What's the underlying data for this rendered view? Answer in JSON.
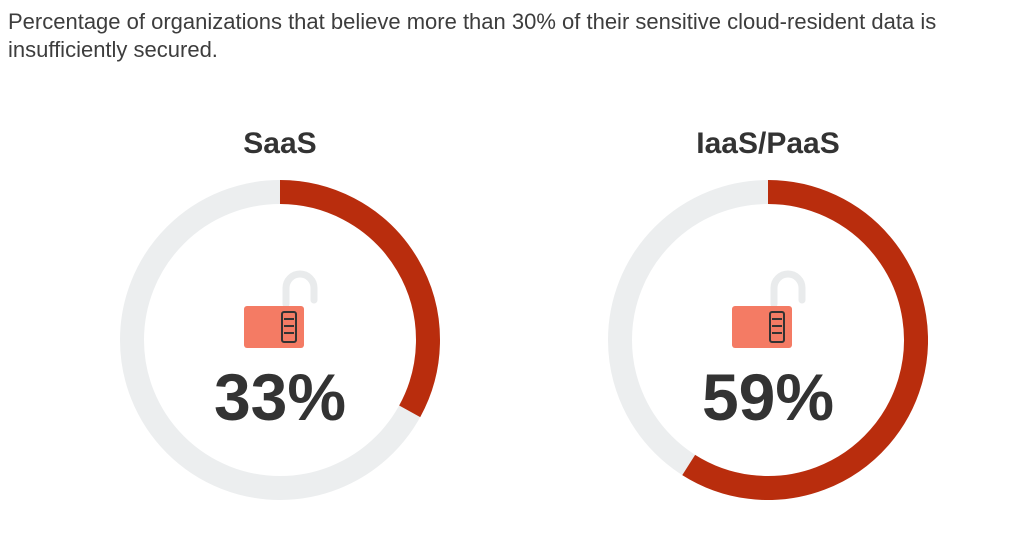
{
  "subtitle": "Percentage of organizations that believe more than 30% of their sensitive cloud-resident data is insufficiently secured.",
  "colors": {
    "track": "#eceeef",
    "accent": "#b92d0d",
    "lock_body": "#f47b64",
    "lock_shackle": "#e9ebec",
    "lock_dial": "#333333",
    "text": "#333333"
  },
  "chart_data": [
    {
      "type": "pie",
      "title": "SaaS",
      "label": "33%",
      "value": 33,
      "max": 100,
      "icon": "unlocked-padlock-icon"
    },
    {
      "type": "pie",
      "title": "IaaS/PaaS",
      "label": "59%",
      "value": 59,
      "max": 100,
      "icon": "unlocked-padlock-icon"
    }
  ]
}
